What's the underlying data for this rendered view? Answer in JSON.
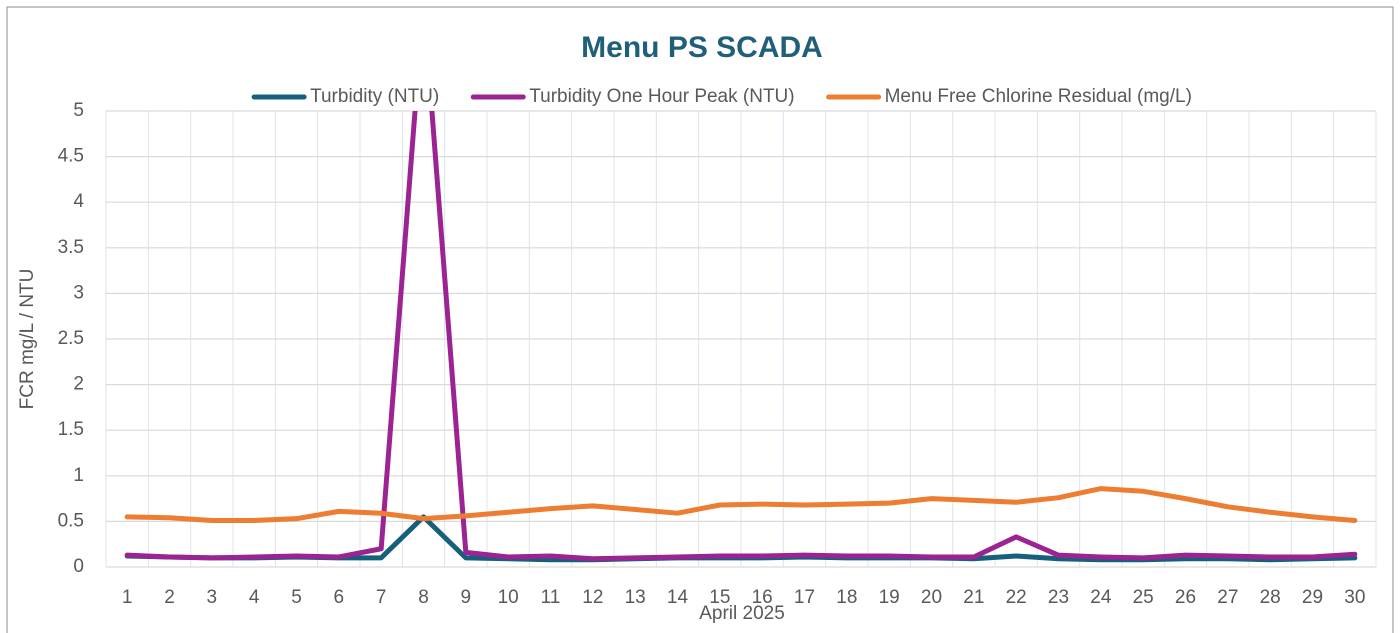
{
  "chart_data": {
    "type": "line",
    "title": "Menu PS SCADA",
    "x_label": "April 2025",
    "y_label": "FCR mg/L / NTU",
    "categories": [
      "1",
      "2",
      "3",
      "4",
      "5",
      "6",
      "7",
      "8",
      "9",
      "10",
      "11",
      "12",
      "13",
      "14",
      "15",
      "16",
      "17",
      "18",
      "19",
      "20",
      "21",
      "22",
      "23",
      "24",
      "25",
      "26",
      "27",
      "28",
      "29",
      "30"
    ],
    "series": [
      {
        "name": "Turbidity (NTU)",
        "color": "#17607d",
        "values": [
          0.12,
          0.11,
          0.1,
          0.1,
          0.11,
          0.1,
          0.1,
          0.55,
          0.1,
          0.09,
          0.08,
          0.08,
          0.09,
          0.1,
          0.1,
          0.1,
          0.11,
          0.1,
          0.1,
          0.1,
          0.09,
          0.12,
          0.09,
          0.08,
          0.08,
          0.09,
          0.09,
          0.08,
          0.09,
          0.1
        ]
      },
      {
        "name": "Turbidity One Hour Peak (NTU)",
        "color": "#9b2393",
        "values": [
          0.13,
          0.11,
          0.1,
          0.11,
          0.12,
          0.11,
          0.2,
          6.2,
          0.16,
          0.11,
          0.12,
          0.09,
          0.1,
          0.11,
          0.12,
          0.12,
          0.13,
          0.12,
          0.12,
          0.11,
          0.11,
          0.33,
          0.13,
          0.11,
          0.1,
          0.13,
          0.12,
          0.11,
          0.11,
          0.14
        ]
      },
      {
        "name": "Menu Free Chlorine Residual (mg/L)",
        "color": "#ed7d31",
        "values": [
          0.55,
          0.54,
          0.51,
          0.51,
          0.53,
          0.61,
          0.59,
          0.53,
          0.56,
          0.6,
          0.64,
          0.67,
          0.63,
          0.59,
          0.68,
          0.69,
          0.68,
          0.69,
          0.7,
          0.75,
          0.73,
          0.71,
          0.76,
          0.86,
          0.83,
          0.75,
          0.66,
          0.6,
          0.55,
          0.51
        ]
      }
    ],
    "ylim": [
      0,
      5
    ],
    "yticks": [
      0,
      0.5,
      1,
      1.5,
      2,
      2.5,
      3,
      3.5,
      4,
      4.5,
      5
    ],
    "grid": true,
    "legend": "top"
  }
}
